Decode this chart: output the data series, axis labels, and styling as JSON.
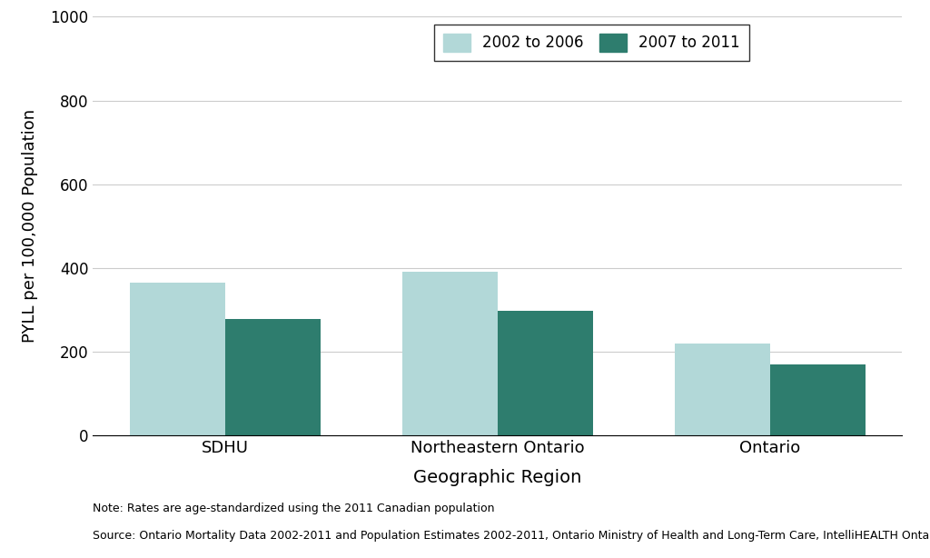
{
  "categories": [
    "SDHU",
    "Northeastern Ontario",
    "Ontario"
  ],
  "values_2002_2006": [
    365,
    390,
    220
  ],
  "values_2007_2011": [
    278,
    298,
    170
  ],
  "color_2002_2006": "#b2d8d8",
  "color_2007_2011": "#2e7d6e",
  "ylabel": "PYLL per 100,000 Population",
  "xlabel": "Geographic Region",
  "legend_labels": [
    "2002 to 2006",
    "2007 to 2011"
  ],
  "ylim": [
    0,
    1000
  ],
  "yticks": [
    0,
    200,
    400,
    600,
    800,
    1000
  ],
  "bar_width": 0.35,
  "note_line1": "Note: Rates are age-standardized using the 2011 Canadian population",
  "note_line2": "Source: Ontario Mortality Data 2002-2011 and Population Estimates 2002-2011, Ontario Ministry of Health and Long-Term Care, IntelliHEALTH Ontario",
  "background_color": "#ffffff",
  "grid_color": "#cccccc"
}
